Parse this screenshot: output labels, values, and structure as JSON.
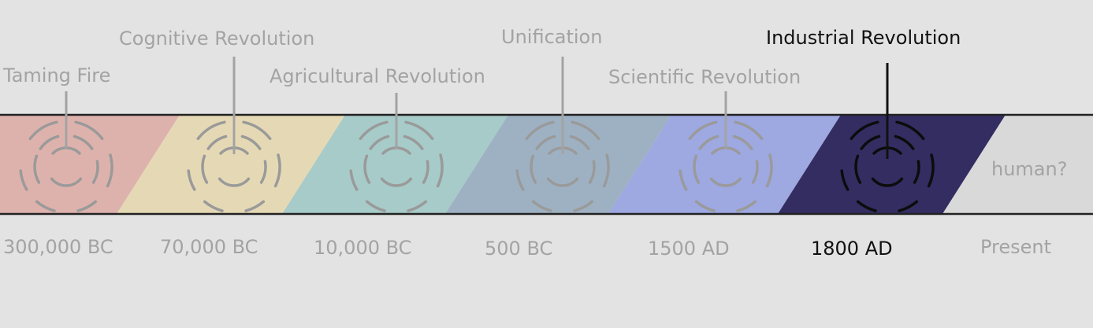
{
  "colors": {
    "background": "#e3e3e3",
    "muted_text": "#a3a3a3",
    "active_text": "#111111",
    "band_border": "#222222"
  },
  "eras": [
    {
      "label": "Taming Fire",
      "date": "300,000 BC",
      "color": "#deb2ac",
      "active": false,
      "icon": "target-rings-icon"
    },
    {
      "label": "Cognitive Revolution",
      "date": "70,000 BC",
      "color": "#e5d9b5",
      "active": false,
      "icon": "target-rings-icon"
    },
    {
      "label": "Agricultural Revolution",
      "date": "10,000 BC",
      "color": "#a7cbc8",
      "active": false,
      "icon": "target-rings-icon"
    },
    {
      "label": "Unification",
      "date": "500 BC",
      "color": "#9eb1c3",
      "active": false,
      "icon": "target-rings-icon"
    },
    {
      "label": "Scientific Revolution",
      "date": "1500 AD",
      "color": "#9ea8e1",
      "active": false,
      "icon": "target-rings-icon"
    },
    {
      "label": "Industrial Revolution",
      "date": "1800 AD",
      "color": "#332d62",
      "active": true,
      "icon": "target-rings-icon"
    }
  ],
  "future": {
    "label": "human?",
    "date": "Present",
    "color": "#d9d9d9"
  }
}
